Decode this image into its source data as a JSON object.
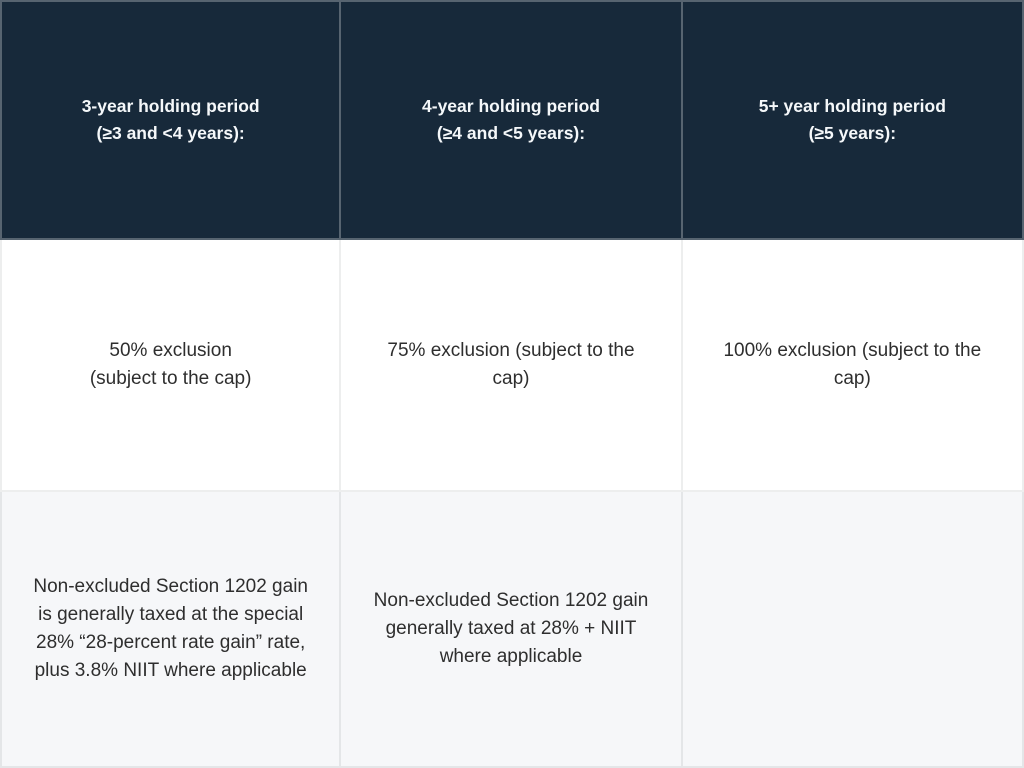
{
  "chart_data": {
    "type": "table",
    "columns": [
      "3-year holding period\n(≥3 and <4 years):",
      "4-year holding period\n(≥4 and <5 years):",
      "5+ year holding period\n(≥5 years):"
    ],
    "rows": [
      [
        "50% exclusion\n(subject to the cap)",
        "75% exclusion (subject to the\ncap)",
        "100% exclusion (subject to the\ncap)"
      ],
      [
        "Non-excluded Section 1202 gain\nis generally taxed at the special\n28% “28-percent rate gain” rate,\nplus 3.8% NIIT where applicable",
        "Non-excluded Section 1202 gain\ngenerally taxed at 28% + NIIT\nwhere applicable",
        ""
      ]
    ],
    "layout": {
      "header_row": true,
      "alternating_row_shading": true
    }
  },
  "colors": {
    "header_bg": "#17293a",
    "header_text": "#f5f8fa",
    "body_text": "#2e2e2e",
    "row_white_bg": "#ffffff",
    "row_alt_bg": "#f6f7f9"
  }
}
